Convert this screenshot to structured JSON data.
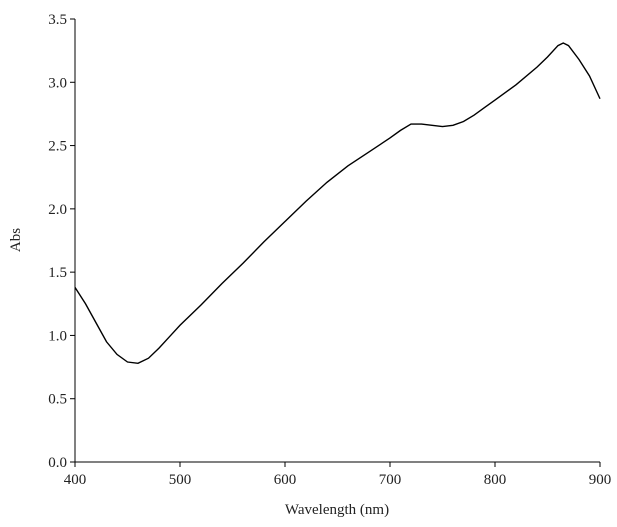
{
  "chart_data": {
    "type": "line",
    "x_label": "Wavelength (nm)",
    "y_label": "Abs",
    "x": [
      400,
      410,
      420,
      430,
      440,
      450,
      460,
      470,
      480,
      490,
      500,
      520,
      540,
      560,
      580,
      600,
      620,
      640,
      660,
      680,
      700,
      710,
      720,
      730,
      740,
      750,
      760,
      770,
      780,
      790,
      800,
      820,
      840,
      850,
      860,
      865,
      870,
      880,
      890,
      900
    ],
    "series": [
      {
        "color": "#000000",
        "values": [
          1.38,
          1.25,
          1.1,
          0.95,
          0.85,
          0.79,
          0.78,
          0.82,
          0.9,
          0.99,
          1.08,
          1.24,
          1.41,
          1.57,
          1.74,
          1.9,
          2.06,
          2.21,
          2.34,
          2.45,
          2.56,
          2.62,
          2.67,
          2.67,
          2.66,
          2.65,
          2.66,
          2.69,
          2.74,
          2.8,
          2.86,
          2.98,
          3.12,
          3.2,
          3.29,
          3.31,
          3.29,
          3.18,
          3.05,
          2.87
        ]
      }
    ],
    "xlim": [
      400,
      900
    ],
    "xticks": [
      400,
      500,
      600,
      700,
      800,
      900
    ],
    "ylim": [
      0,
      3.5
    ],
    "yticks": [
      {
        "value": 0,
        "label": "0.0"
      },
      0.5,
      {
        "value": 1,
        "label": "1.0"
      },
      1.5,
      {
        "value": 2,
        "label": "2.0"
      },
      2.5,
      {
        "value": 3,
        "label": "3.0"
      },
      3.5
    ]
  }
}
